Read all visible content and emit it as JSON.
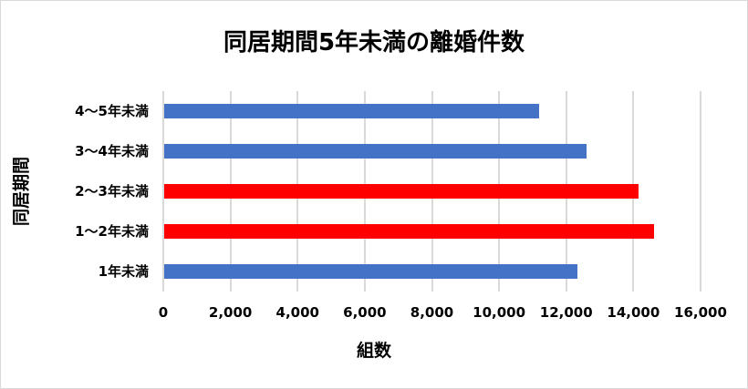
{
  "chart_data": {
    "type": "bar",
    "orientation": "horizontal",
    "title": "同居期間5年未満の離婚件数",
    "xlabel": "組数",
    "ylabel": "同居期間",
    "categories": [
      "1年未満",
      "1～2年未満",
      "2～3年未満",
      "3～4年未満",
      "4～5年未満"
    ],
    "values": [
      12340,
      14620,
      14160,
      12610,
      11200
    ],
    "bar_colors": [
      "#4472c4",
      "#ff0000",
      "#ff0000",
      "#4472c4",
      "#4472c4"
    ],
    "xlim": [
      0,
      16000
    ],
    "xticks": [
      0,
      2000,
      4000,
      6000,
      8000,
      10000,
      12000,
      14000,
      16000
    ],
    "xtick_labels": [
      "0",
      "2,000",
      "4,000",
      "6,000",
      "8,000",
      "10,000",
      "12,000",
      "14,000",
      "16,000"
    ],
    "grid": "vertical",
    "legend": null
  },
  "colors": {
    "default_bar": "#4472c4",
    "highlight_bar": "#ff0000",
    "grid": "#d9d9d9",
    "border": "#d9d9d9"
  }
}
